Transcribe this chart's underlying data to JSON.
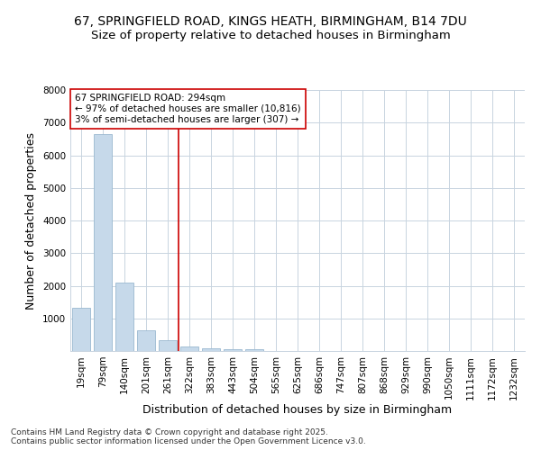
{
  "title1": "67, SPRINGFIELD ROAD, KINGS HEATH, BIRMINGHAM, B14 7DU",
  "title2": "Size of property relative to detached houses in Birmingham",
  "xlabel": "Distribution of detached houses by size in Birmingham",
  "ylabel": "Number of detached properties",
  "bar_color": "#c6d9ea",
  "bar_edge_color": "#9ab8d0",
  "grid_color": "#c8d4e0",
  "background_color": "#ffffff",
  "fig_background_color": "#ffffff",
  "categories": [
    "19sqm",
    "79sqm",
    "140sqm",
    "201sqm",
    "261sqm",
    "322sqm",
    "383sqm",
    "443sqm",
    "504sqm",
    "565sqm",
    "625sqm",
    "686sqm",
    "747sqm",
    "807sqm",
    "868sqm",
    "929sqm",
    "990sqm",
    "1050sqm",
    "1111sqm",
    "1172sqm",
    "1232sqm"
  ],
  "values": [
    1330,
    6660,
    2100,
    640,
    320,
    150,
    90,
    50,
    60,
    0,
    0,
    0,
    0,
    0,
    0,
    0,
    0,
    0,
    0,
    0,
    0
  ],
  "ylim": [
    0,
    8000
  ],
  "yticks": [
    0,
    1000,
    2000,
    3000,
    4000,
    5000,
    6000,
    7000,
    8000
  ],
  "vline_x": 4.5,
  "vline_color": "#cc0000",
  "annotation_text": "67 SPRINGFIELD ROAD: 294sqm\n← 97% of detached houses are smaller (10,816)\n3% of semi-detached houses are larger (307) →",
  "annotation_box_color": "#ffffff",
  "annotation_box_edge": "#cc0000",
  "footer_text": "Contains HM Land Registry data © Crown copyright and database right 2025.\nContains public sector information licensed under the Open Government Licence v3.0.",
  "title1_fontsize": 10,
  "title2_fontsize": 9.5,
  "axis_label_fontsize": 9,
  "tick_fontsize": 7.5,
  "annotation_fontsize": 7.5,
  "footer_fontsize": 6.5
}
